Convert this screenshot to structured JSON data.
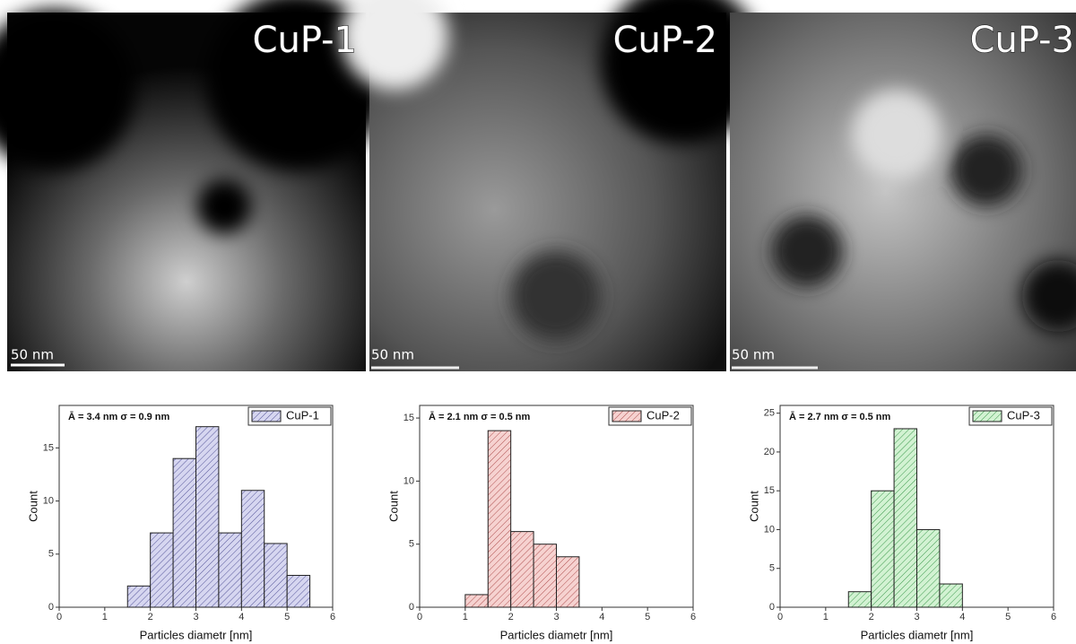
{
  "images": [
    {
      "label": "CuP-1",
      "scale_bar": "50 nm"
    },
    {
      "label": "CuP-2",
      "scale_bar": "50 nm"
    },
    {
      "label": "CuP-3",
      "scale_bar": "50 nm"
    }
  ],
  "chart_data": [
    {
      "type": "histogram",
      "annotation": "Ā = 3.4 nm σ = 0.9 nm",
      "xlabel": "Particles diametr [nm]",
      "ylabel": "Count",
      "bins": [
        1.5,
        2,
        2.5,
        3,
        3.5,
        4,
        4.5,
        5,
        5.5
      ],
      "series": [
        {
          "name": "CuP-1",
          "color": "#d6d6f0",
          "edge_color": "#55559a",
          "values": [
            2,
            7,
            14,
            17,
            7,
            11,
            6,
            3
          ]
        }
      ],
      "xlim": [
        0,
        6
      ],
      "xticks": [
        0,
        1,
        2,
        3,
        4,
        5,
        6
      ],
      "ylim": [
        0,
        19
      ],
      "yticks": [
        0,
        5,
        10,
        15
      ],
      "legend": "upper right"
    },
    {
      "type": "histogram",
      "annotation": "Ā = 2.1 nm σ = 0.5 nm",
      "xlabel": "Particles diametr [nm]",
      "ylabel": "Count",
      "bins": [
        1,
        1.5,
        2,
        2.5,
        3,
        3.5
      ],
      "series": [
        {
          "name": "CuP-2",
          "color": "#f6d2d0",
          "edge_color": "#b05050",
          "values": [
            1,
            14,
            6,
            5,
            4
          ]
        }
      ],
      "xlim": [
        0,
        6
      ],
      "xticks": [
        0,
        1,
        2,
        3,
        4,
        5,
        6
      ],
      "ylim": [
        0,
        16
      ],
      "yticks": [
        0,
        5,
        10,
        15
      ],
      "legend": "upper right"
    },
    {
      "type": "histogram",
      "annotation": "Ā = 2.7 nm σ = 0.5 nm",
      "xlabel": "Particles diametr [nm]",
      "ylabel": "Count",
      "bins": [
        1.5,
        2,
        2.5,
        3,
        3.5,
        4
      ],
      "series": [
        {
          "name": "CuP-3",
          "color": "#d2f2d2",
          "edge_color": "#3c9a4c",
          "values": [
            2,
            15,
            23,
            10,
            3
          ]
        }
      ],
      "xlim": [
        0,
        6
      ],
      "xticks": [
        0,
        1,
        2,
        3,
        4,
        5,
        6
      ],
      "ylim": [
        0,
        26
      ],
      "yticks": [
        0,
        5,
        10,
        15,
        20,
        25
      ],
      "legend": "upper right"
    }
  ]
}
